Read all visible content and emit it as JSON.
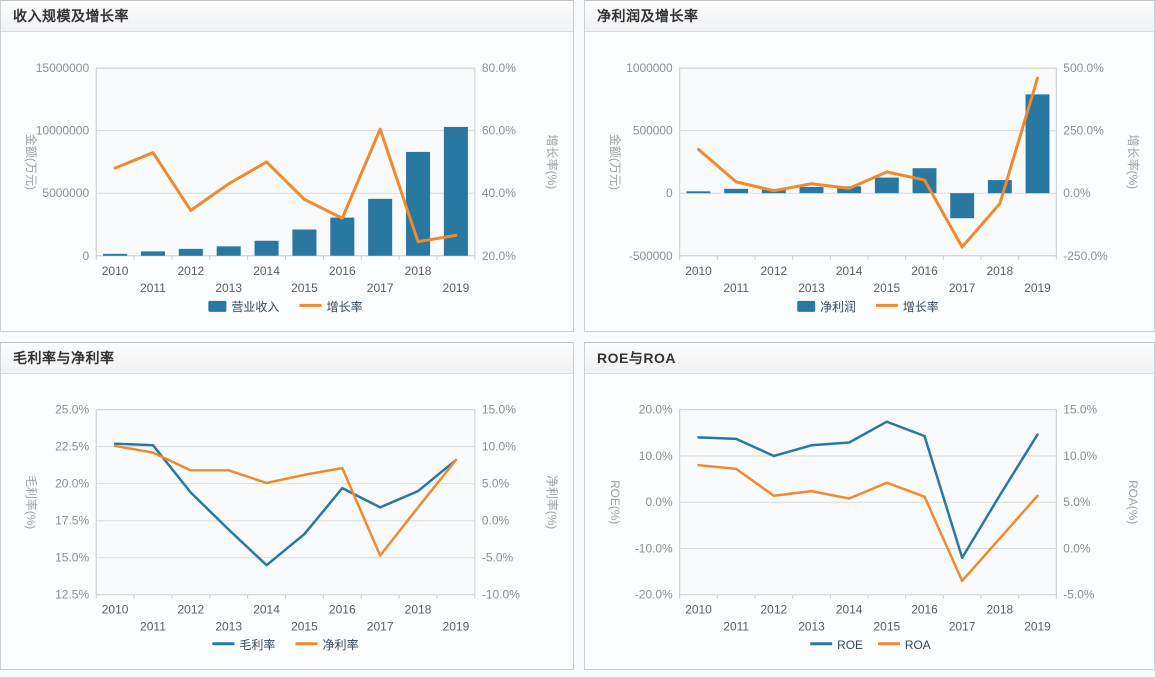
{
  "colors": {
    "bar_blue": "#2878a2",
    "line_orange": "#f08a2d",
    "grid_line": "#d9d9d9",
    "plot_border": "#c5ccd3",
    "plot_background": "#f8fafc",
    "tick_label": "#8a9097",
    "x_label": "#565e64",
    "axis_title": "#9aa1a8",
    "legend_text": "#33475b",
    "panel_title": "#333333"
  },
  "chart_data": [
    {
      "type": "bar+line",
      "title": "收入规模及增长率",
      "categories": [
        "2010",
        "2011",
        "2012",
        "2013",
        "2014",
        "2015",
        "2016",
        "2017",
        "2018",
        "2019"
      ],
      "left_axis": {
        "title": "金额(万元)",
        "min": 0,
        "max": 15000000,
        "tick_labels": [
          "15000000",
          "10000000",
          "5000000",
          "0"
        ]
      },
      "right_axis": {
        "title": "增长率(%)",
        "min": 20,
        "max": 80,
        "tick_labels": [
          "80.0%",
          "60.0%",
          "40.0%",
          "20.0%"
        ]
      },
      "series": [
        {
          "name": "营业收入",
          "type": "bar",
          "axis": "left",
          "color": "#2878a2",
          "values": [
            150000,
            350000,
            550000,
            750000,
            1200000,
            2100000,
            3050000,
            4550000,
            8300000,
            10300000
          ]
        },
        {
          "name": "增长率",
          "type": "line",
          "axis": "right",
          "color": "#f08a2d",
          "values": [
            48,
            53,
            34.5,
            43,
            50,
            38,
            32,
            60.5,
            24.5,
            26.5
          ]
        }
      ]
    },
    {
      "type": "bar+line",
      "title": "净利润及增长率",
      "categories": [
        "2010",
        "2011",
        "2012",
        "2013",
        "2014",
        "2015",
        "2016",
        "2017",
        "2018",
        "2019"
      ],
      "left_axis": {
        "title": "金额(万元)",
        "min": -500000,
        "max": 1000000,
        "tick_labels": [
          "1000000",
          "500000",
          "0",
          "-500000"
        ]
      },
      "right_axis": {
        "title": "增长率(%)",
        "min": -250,
        "max": 500,
        "tick_labels": [
          "500.0%",
          "250.0%",
          "0.0%",
          "-250.0%"
        ]
      },
      "series": [
        {
          "name": "净利润",
          "type": "bar",
          "axis": "left",
          "color": "#2878a2",
          "values": [
            15000,
            35000,
            30000,
            50000,
            55000,
            125000,
            200000,
            -200000,
            105000,
            790000
          ]
        },
        {
          "name": "增长率",
          "type": "line",
          "axis": "right",
          "color": "#f08a2d",
          "values": [
            175,
            45,
            10,
            38,
            19,
            85,
            53,
            -215,
            -42,
            460
          ]
        }
      ]
    },
    {
      "type": "line",
      "title": "毛利率与净利率",
      "categories": [
        "2010",
        "2011",
        "2012",
        "2013",
        "2014",
        "2015",
        "2016",
        "2017",
        "2018",
        "2019"
      ],
      "left_axis": {
        "title": "毛利率(%)",
        "min": 12.5,
        "max": 25,
        "tick_labels": [
          "25.0%",
          "22.5%",
          "20.0%",
          "17.5%",
          "15.0%",
          "12.5%"
        ]
      },
      "right_axis": {
        "title": "净利率(%)",
        "min": -10,
        "max": 15,
        "tick_labels": [
          "15.0%",
          "10.0%",
          "5.0%",
          "0.0%",
          "-5.0%",
          "-10.0%"
        ]
      },
      "series": [
        {
          "name": "毛利率",
          "type": "line",
          "axis": "left",
          "color": "#2878a2",
          "values": [
            22.7,
            22.6,
            19.4,
            16.9,
            14.5,
            16.6,
            19.7,
            18.4,
            19.5,
            21.6
          ]
        },
        {
          "name": "净利率",
          "type": "line",
          "axis": "right",
          "color": "#f08a2d",
          "values": [
            10.1,
            9.2,
            6.8,
            6.8,
            5.1,
            6.2,
            7.1,
            -4.7,
            1.8,
            8.2
          ]
        }
      ]
    },
    {
      "type": "line",
      "title": "ROE与ROA",
      "categories": [
        "2010",
        "2011",
        "2012",
        "2013",
        "2014",
        "2015",
        "2016",
        "2017",
        "2018",
        "2019"
      ],
      "left_axis": {
        "title": "ROE(%)",
        "min": -20,
        "max": 20,
        "tick_labels": [
          "20.0%",
          "10.0%",
          "0.0%",
          "-10.0%",
          "-20.0%"
        ]
      },
      "right_axis": {
        "title": "ROA(%)",
        "min": -5,
        "max": 15,
        "tick_labels": [
          "15.0%",
          "10.0%",
          "5.0%",
          "0.0%",
          "-5.0%"
        ]
      },
      "series": [
        {
          "name": "ROE",
          "type": "line",
          "axis": "left",
          "color": "#2878a2",
          "values": [
            14,
            13.7,
            10,
            12.3,
            12.9,
            17.4,
            14.3,
            -12,
            1.5,
            14.6
          ]
        },
        {
          "name": "ROA",
          "type": "line",
          "axis": "right",
          "color": "#f08a2d",
          "values": [
            9,
            8.6,
            5.7,
            6.2,
            5.4,
            7.1,
            5.6,
            -3.5,
            1.1,
            5.7
          ]
        }
      ]
    }
  ]
}
